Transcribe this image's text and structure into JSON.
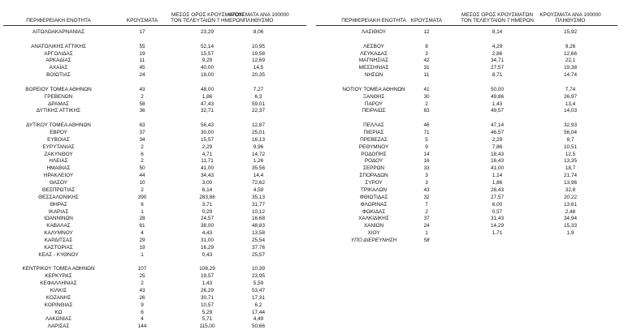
{
  "left": {
    "header": [
      "ΠΕΡΙΦΕΡΕΙΑΚΗ ΕΝΟΤΗΤΑ",
      "ΚΡΟΥΣΜΑΤΑ",
      [
        "ΜΕΣΟΣ ΟΡΟΣ ΚΡΟΥΣΜΑΤΩΝ",
        "ΤΟΝ ΤΕΛΕΥΤΑΙΩΝ 7 ΗΜΕΡΩΝ"
      ],
      [
        "ΚΡΟΥΣΜΑΤΑ ΑΝΑ 100000",
        "ΠΛΗΘΥΣΜΟ"
      ]
    ],
    "groups": [
      [
        [
          "ΑΙΤΩΛΟΑΚΑΡΝΑΝΙΑΣ",
          "17",
          "23,29",
          "8,06"
        ]
      ],
      [
        [
          "ΑΝΑΤΟΛΙΚΗΣ ΑΤΤΙΚΗΣ",
          "55",
          "52,14",
          "10,95"
        ],
        [
          "ΑΡΓΟΛΙΔΑΣ",
          "19",
          "15,57",
          "19,58"
        ],
        [
          "ΑΡΚΑΔΙΑΣ",
          "11",
          "9,29",
          "12,69"
        ],
        [
          "ΑΧΑΪΑΣ",
          "45",
          "40,00",
          "14,5"
        ],
        [
          "ΒΟΙΩΤΙΑΣ",
          "24",
          "18,00",
          "20,35"
        ]
      ],
      [
        [
          "ΒΟΡΕΙΟΥ ΤΟΜΕΑ ΑΘΗΝΩΝ",
          "43",
          "48,00",
          "7,27"
        ],
        [
          "ΓΡΕΒΕΝΩΝ",
          "2",
          "1,86",
          "6,3"
        ],
        [
          "ΔΡΑΜΑΣ",
          "58",
          "47,43",
          "59,01"
        ],
        [
          "ΔΥΤΙΚΗΣ ΑΤΤΙΚΗΣ",
          "36",
          "32,71",
          "22,37"
        ]
      ],
      [
        [
          "ΔΥΤΙΚΟΥ ΤΟΜΕΑ ΑΘΗΝΩΝ",
          "63",
          "56,43",
          "12,87"
        ],
        [
          "ΕΒΡΟΥ",
          "37",
          "30,00",
          "25,01"
        ],
        [
          "ΕΥΒΟΙΑΣ",
          "34",
          "15,57",
          "16,13"
        ],
        [
          "ΕΥΡΥΤΑΝΙΑΣ",
          "2",
          "2,29",
          "9,96"
        ],
        [
          "ΖΑΚΥΝΘΟΥ",
          "6",
          "4,71",
          "14,72"
        ],
        [
          "ΗΛΕΙΑΣ",
          "2",
          "11,71",
          "1,26"
        ],
        [
          "ΗΜΑΘΙΑΣ",
          "50",
          "41,00",
          "35,56"
        ],
        [
          "ΗΡΑΚΛΕΙΟΥ",
          "44",
          "34,43",
          "14,4"
        ],
        [
          "ΘΑΣΟΥ",
          "10",
          "3,00",
          "72,62"
        ],
        [
          "ΘΕΣΠΡΩΤΙΑΣ",
          "2",
          "6,14",
          "4,59"
        ],
        [
          "ΘΕΣΣΑΛΟΝΙΚΗΣ",
          "390",
          "283,86",
          "35,13"
        ],
        [
          "ΘΗΡΑΣ",
          "6",
          "3,71",
          "31,77"
        ],
        [
          "ΙΚΑΡΙΑΣ",
          "1",
          "0,29",
          "10,12"
        ],
        [
          "ΙΩΑΝΝΙΝΩΝ",
          "28",
          "24,57",
          "16,68"
        ],
        [
          "ΚΑΒΑΛΑΣ",
          "61",
          "38,00",
          "48,83"
        ],
        [
          "ΚΑΛΥΜΝΟΥ",
          "4",
          "4,43",
          "13,58"
        ],
        [
          "ΚΑΡΔΙΤΣΑΣ",
          "29",
          "31,00",
          "25,54"
        ],
        [
          "ΚΑΣΤΟΡΙΑΣ",
          "19",
          "16,29",
          "37,76"
        ],
        [
          "ΚΕΑΣ - ΚΥΘΝΟΥ",
          "1",
          "0,43",
          "25,57"
        ]
      ],
      [
        [
          "ΚΕΝΤΡΙΚΟΥ ΤΟΜΕΑ ΑΘΗΝΩΝ",
          "107",
          "108,29",
          "10,39"
        ],
        [
          "ΚΕΡΚΥΡΑΣ",
          "25",
          "19,57",
          "23,95"
        ],
        [
          "ΚΕΦΑΛΛΗΝΙΑΣ",
          "2",
          "1,43",
          "5,59"
        ],
        [
          "ΚΙΛΚΙΣ",
          "43",
          "26,29",
          "53,47"
        ],
        [
          "ΚΟΖΑΝΗΣ",
          "26",
          "30,71",
          "17,31"
        ],
        [
          "ΚΟΡΙΝΘΙΑΣ",
          "9",
          "10,57",
          "6,2"
        ],
        [
          "ΚΩ",
          "6",
          "5,29",
          "17,44"
        ],
        [
          "ΛΑΚΩΝΙΑΣ",
          "4",
          "5,71",
          "4,49"
        ],
        [
          "ΛΑΡΙΣΑΣ",
          "144",
          "115,00",
          "50,66"
        ]
      ]
    ]
  },
  "right": {
    "header": [
      "ΠΕΡΙΦΕΡΕΙΑΚΗ ΕΝΟΤΗΤΑ",
      "ΚΡΟΥΣΜΑΤΑ",
      [
        "ΜΕΣΟΣ ΟΡΟΣ ΚΡΟΥΣΜΑΤΩΝ",
        "ΤΟΝ ΤΕΛΕΥΤΑΙΩΝ 7 ΗΜΕΡΩΝ"
      ],
      [
        "ΚΡΟΥΣΜΑΤΑ ΑΝΑ 100000",
        "ΠΛΗΘΥΣΜΟ"
      ]
    ],
    "groups": [
      [
        [
          "ΛΑΣΙΘΙΟΥ",
          "12",
          "8,14",
          "15,92"
        ]
      ],
      [
        [
          "ΛΕΣΒΟΥ",
          "8",
          "4,29",
          "9,26"
        ],
        [
          "ΛΕΥΚΑΔΑΣ",
          "3",
          "2,86",
          "12,66"
        ],
        [
          "ΜΑΓΝΗΣΙΑΣ",
          "42",
          "34,71",
          "22,1"
        ],
        [
          "ΜΕΣΣΗΝΙΑΣ",
          "31",
          "27,57",
          "19,38"
        ],
        [
          "ΝΗΣΩΝ",
          "11",
          "8,71",
          "14,74"
        ]
      ],
      [
        [
          "ΝΟΤΙΟΥ ΤΟΜΕΑ ΑΘΗΝΩΝ",
          "41",
          "50,00",
          "7,74"
        ],
        [
          "ΞΑΝΘΗΣ",
          "30",
          "49,86",
          "26,97"
        ],
        [
          "ΠΑΡΟΥ",
          "2",
          "1,43",
          "13,4"
        ],
        [
          "ΠΕΙΡΑΙΩΣ",
          "63",
          "49,57",
          "14,03"
        ]
      ],
      [
        [
          "ΠΕΛΛΑΣ",
          "46",
          "47,14",
          "32,93"
        ],
        [
          "ΠΙΕΡΙΑΣ",
          "71",
          "46,57",
          "56,04"
        ],
        [
          "ΠΡΕΒΕΖΑΣ",
          "5",
          "2,29",
          "8,7"
        ],
        [
          "ΡΕΘΥΜΝΟΥ",
          "9",
          "7,86",
          "10,51"
        ],
        [
          "ΡΟΔΟΠΗΣ",
          "14",
          "18,43",
          "12,5"
        ],
        [
          "ΡΟΔΟΥ",
          "16",
          "16,43",
          "13,35"
        ],
        [
          "ΣΕΡΡΩΝ",
          "33",
          "41,00",
          "18,7"
        ],
        [
          "ΣΠΟΡΑΔΩΝ",
          "3",
          "1,14",
          "21,74"
        ],
        [
          "ΣΥΡΟΥ",
          "3",
          "1,86",
          "13,96"
        ],
        [
          "ΤΡΙΚΑΛΩΝ",
          "43",
          "28,43",
          "32,8"
        ],
        [
          "ΦΘΙΩΤΙΔΑΣ",
          "32",
          "27,57",
          "20,22"
        ],
        [
          "ΦΛΩΡΙΝΑΣ",
          "7",
          "6,00",
          "13,61"
        ],
        [
          "ΦΩΚΙΔΑΣ",
          "2",
          "0,57",
          "2,48"
        ],
        [
          "ΧΑΛΚΙΔΙΚΗΣ",
          "37",
          "31,43",
          "34,94"
        ],
        [
          "ΧΑΝΙΩΝ",
          "24",
          "14,29",
          "15,33"
        ],
        [
          "ΧΙΟΥ",
          "1",
          "1,71",
          "1,9"
        ]
      ]
    ],
    "unassigned": [
      "ΥΠΟ ΔΙΕΡΕΥΝΗΣΗ",
      "58"
    ]
  }
}
